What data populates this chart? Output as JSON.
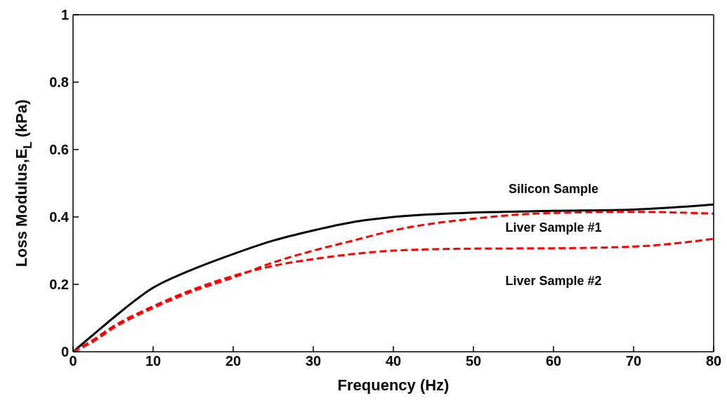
{
  "chart_data": {
    "type": "line",
    "xlabel": "Frequency (Hz)",
    "ylabel": "Loss Modulus,E$_{L}$ (kPa)",
    "x": [
      0,
      2.5,
      5,
      10,
      15,
      20,
      25,
      30,
      35,
      40,
      50,
      60,
      70,
      80
    ],
    "series": [
      {
        "name": "Silicon Sample",
        "color": "#000000",
        "line_style": "solid",
        "values": [
          0,
          0.05,
          0.1,
          0.19,
          0.245,
          0.29,
          0.33,
          0.36,
          0.385,
          0.4,
          0.413,
          0.418,
          0.422,
          0.437
        ]
      },
      {
        "name": "Liver Sample #1",
        "color": "#ff0000",
        "line_style": "dashed",
        "values": [
          0,
          0.03,
          0.07,
          0.13,
          0.18,
          0.22,
          0.265,
          0.3,
          0.33,
          0.36,
          0.395,
          0.412,
          0.415,
          0.41
        ]
      },
      {
        "name": "Liver Sample #2",
        "color": "#ff0000",
        "line_style": "dashed",
        "values": [
          0,
          0.035,
          0.075,
          0.135,
          0.185,
          0.225,
          0.255,
          0.275,
          0.29,
          0.3,
          0.306,
          0.307,
          0.312,
          0.335
        ]
      }
    ],
    "xlim": [
      0,
      80
    ],
    "xticks": [
      0,
      10,
      20,
      30,
      40,
      50,
      60,
      70,
      80
    ],
    "ylim": [
      0,
      1
    ],
    "yticks": [
      0,
      0.2,
      0.4,
      0.6,
      0.8,
      1
    ],
    "marker": "none"
  }
}
